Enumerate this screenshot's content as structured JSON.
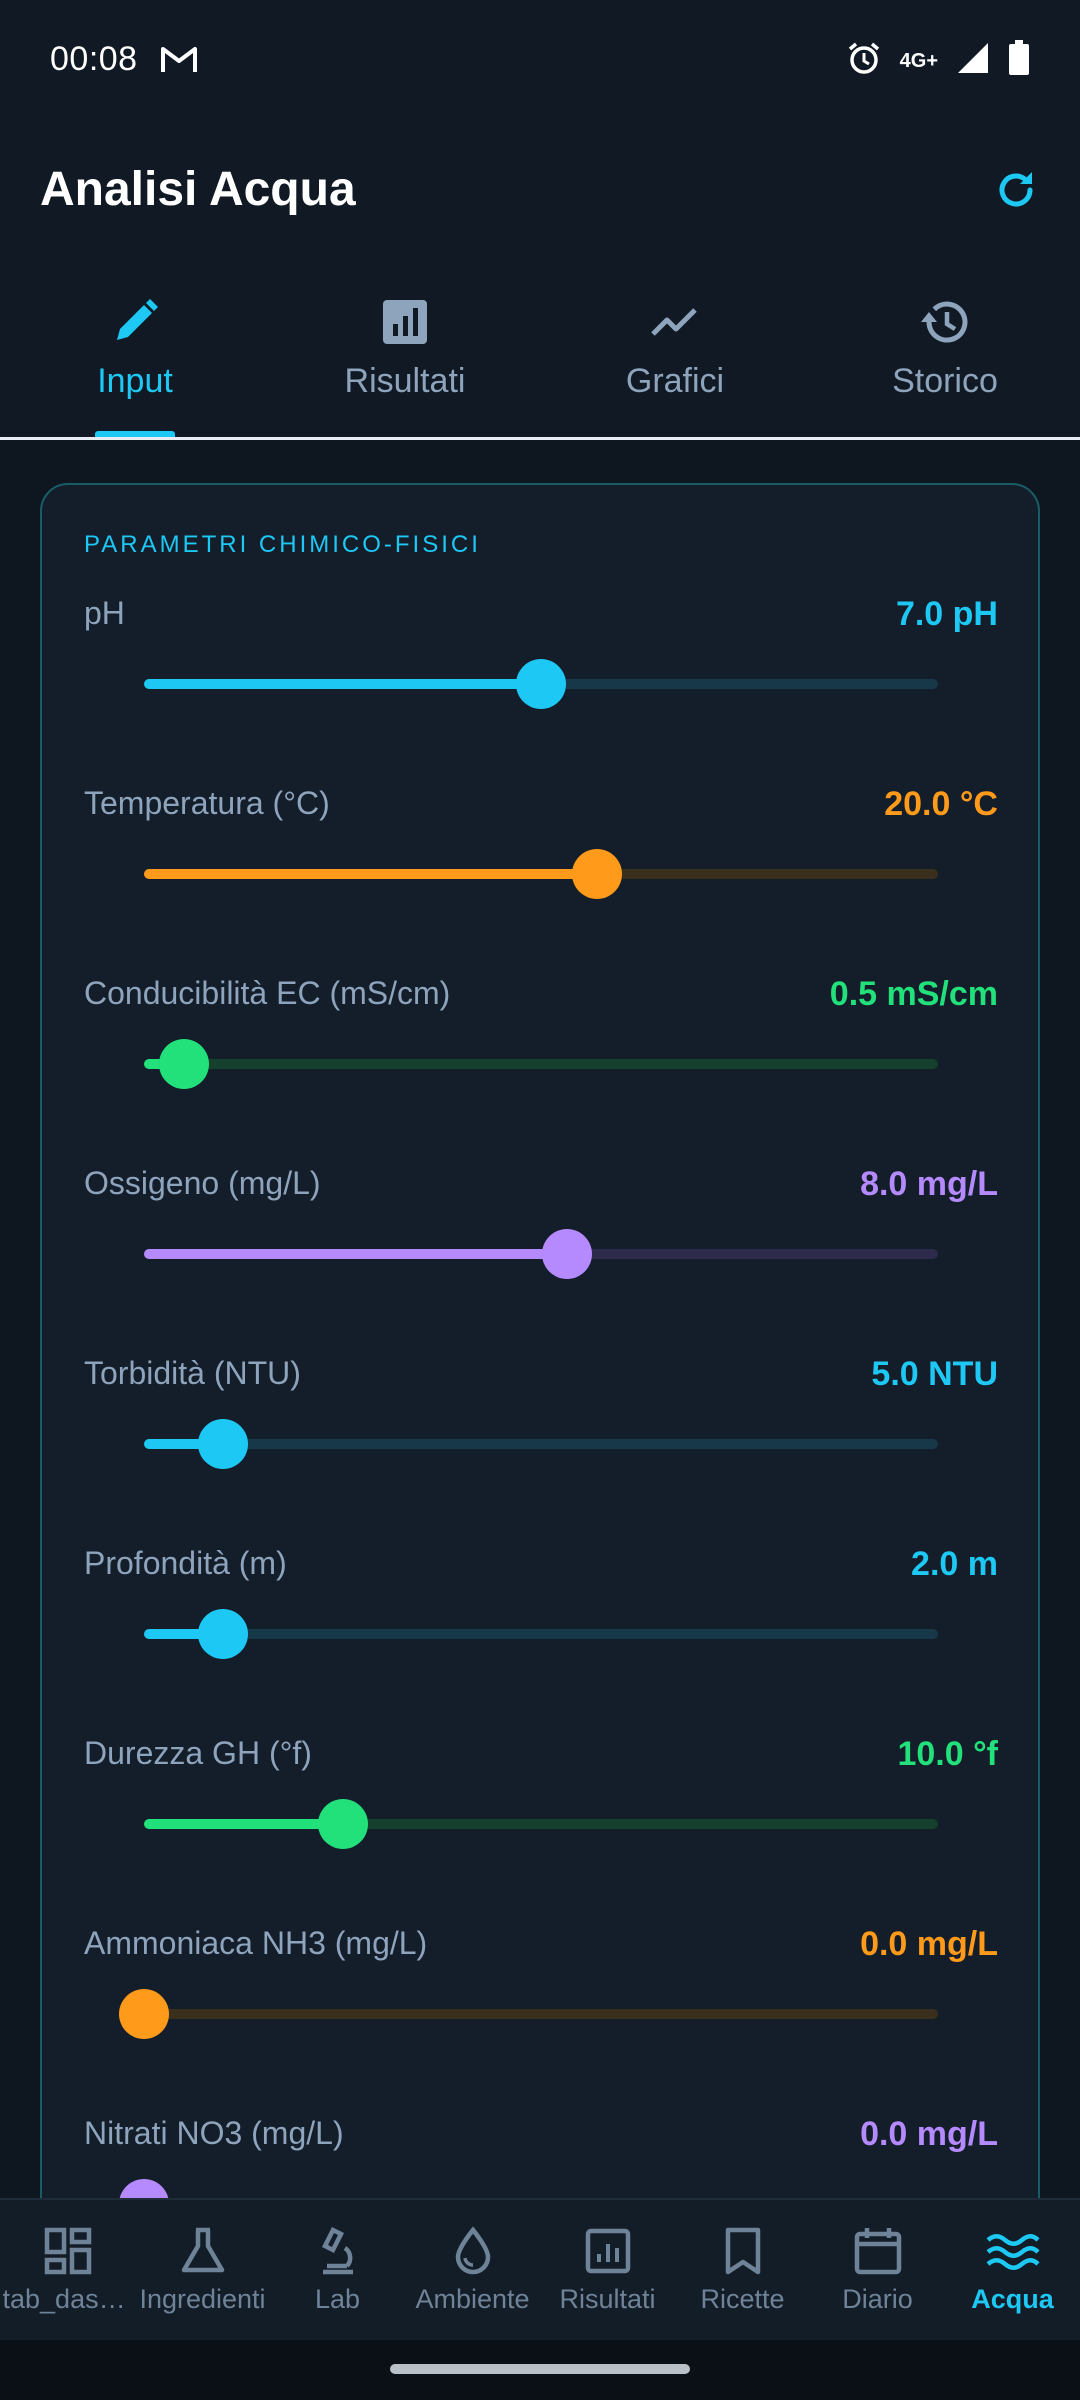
{
  "status": {
    "time": "00:08",
    "network": "4G+"
  },
  "app": {
    "title": "Analisi Acqua"
  },
  "tabs": [
    {
      "label": "Input",
      "icon": "pencil-icon",
      "active": true
    },
    {
      "label": "Risultati",
      "icon": "bar-chart-icon",
      "active": false
    },
    {
      "label": "Grafici",
      "icon": "line-chart-icon",
      "active": false
    },
    {
      "label": "Storico",
      "icon": "history-icon",
      "active": false
    }
  ],
  "card": {
    "section_title": "PARAMETRI CHIMICO-FISICI",
    "params": [
      {
        "label": "pH",
        "value": "7.0 pH",
        "fraction": 0.5,
        "color": "#1ec8f5",
        "track": "#173848"
      },
      {
        "label": "Temperatura (°C)",
        "value": "20.0 °C",
        "fraction": 0.57,
        "color": "#ff9a1a",
        "track": "#3a2e1c"
      },
      {
        "label": "Conducibilità EC (mS/cm)",
        "value": "0.5 mS/cm",
        "fraction": 0.05,
        "color": "#22e07a",
        "track": "#15402e"
      },
      {
        "label": "Ossigeno (mg/L)",
        "value": "8.0 mg/L",
        "fraction": 0.533,
        "color": "#b58aff",
        "track": "#2e2a4c"
      },
      {
        "label": "Torbidità (NTU)",
        "value": "5.0 NTU",
        "fraction": 0.1,
        "color": "#1ec8f5",
        "track": "#173848"
      },
      {
        "label": "Profondità (m)",
        "value": "2.0 m",
        "fraction": 0.1,
        "color": "#1ec8f5",
        "track": "#173848"
      },
      {
        "label": "Durezza GH (°f)",
        "value": "10.0 °f",
        "fraction": 0.25,
        "color": "#22e07a",
        "track": "#15402e"
      },
      {
        "label": "Ammoniaca NH3 (mg/L)",
        "value": "0.0 mg/L",
        "fraction": 0.0,
        "color": "#ff9a1a",
        "track": "#3a2e1c"
      },
      {
        "label": "Nitrati NO3 (mg/L)",
        "value": "0.0 mg/L",
        "fraction": 0.0,
        "color": "#b58aff",
        "track": "#2e2a4c"
      }
    ]
  },
  "bottom_nav": [
    {
      "label": "tab_dashboard",
      "icon": "dashboard-icon",
      "active": false
    },
    {
      "label": "Ingredienti",
      "icon": "flask-icon",
      "active": false
    },
    {
      "label": "Lab",
      "icon": "microscope-icon",
      "active": false
    },
    {
      "label": "Ambiente",
      "icon": "water-drop-icon",
      "active": false
    },
    {
      "label": "Risultati",
      "icon": "bar-chart-icon",
      "active": false
    },
    {
      "label": "Ricette",
      "icon": "bookmark-icon",
      "active": false
    },
    {
      "label": "Diario",
      "icon": "calendar-icon",
      "active": false
    },
    {
      "label": "Acqua",
      "icon": "waves-icon",
      "active": true
    }
  ]
}
